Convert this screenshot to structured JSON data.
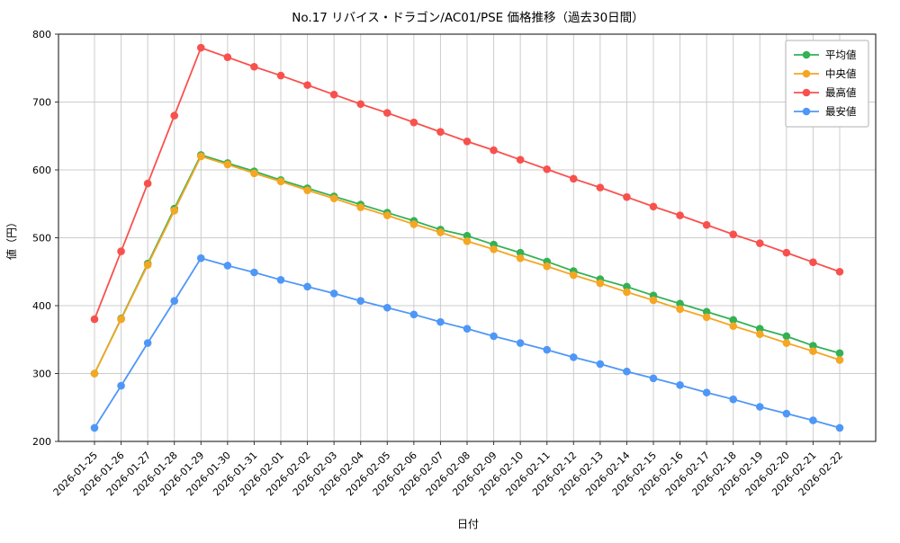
{
  "chart_data": {
    "type": "line",
    "title": "No.17 リバイス・ドラゴン/AC01/PSE 価格推移（過去30日間）",
    "xlabel": "日付",
    "ylabel": "値（円）",
    "ylim": [
      200,
      800
    ],
    "yticks": [
      200,
      300,
      400,
      500,
      600,
      700,
      800
    ],
    "grid": true,
    "legend_position": "upper right",
    "categories": [
      "2026-01-25",
      "2026-01-26",
      "2026-01-27",
      "2026-01-28",
      "2026-01-29",
      "2026-01-30",
      "2026-01-31",
      "2026-02-01",
      "2026-02-02",
      "2026-02-03",
      "2026-02-04",
      "2026-02-05",
      "2026-02-06",
      "2026-02-07",
      "2026-02-08",
      "2026-02-09",
      "2026-02-10",
      "2026-02-11",
      "2026-02-12",
      "2026-02-13",
      "2026-02-14",
      "2026-02-15",
      "2026-02-16",
      "2026-02-17",
      "2026-02-18",
      "2026-02-19",
      "2026-02-20",
      "2026-02-21",
      "2026-02-22"
    ],
    "series": [
      {
        "name": "平均値",
        "key": "average",
        "color": "#33b154",
        "values": [
          300,
          381,
          462,
          543,
          622,
          610,
          598,
          585,
          573,
          561,
          549,
          537,
          525,
          512,
          503,
          490,
          478,
          465,
          451,
          439,
          428,
          415,
          403,
          391,
          379,
          366,
          355,
          341,
          330
        ]
      },
      {
        "name": "中央値",
        "key": "median",
        "color": "#f5a623",
        "values": [
          300,
          380,
          460,
          540,
          620,
          608,
          595,
          583,
          570,
          558,
          545,
          533,
          520,
          508,
          495,
          483,
          470,
          458,
          445,
          433,
          420,
          408,
          395,
          383,
          370,
          358,
          345,
          333,
          320
        ]
      },
      {
        "name": "最高値",
        "key": "max",
        "color": "#f8514d",
        "values": [
          380,
          480,
          580,
          680,
          780,
          766,
          752,
          739,
          725,
          711,
          697,
          684,
          670,
          656,
          642,
          629,
          615,
          601,
          587,
          574,
          560,
          546,
          533,
          519,
          505,
          492,
          478,
          464,
          450
        ]
      },
      {
        "name": "最安値",
        "key": "min",
        "color": "#4f97f7",
        "values": [
          220,
          282,
          345,
          407,
          470,
          459,
          449,
          438,
          428,
          418,
          407,
          397,
          387,
          376,
          366,
          355,
          345,
          335,
          324,
          314,
          303,
          293,
          283,
          272,
          262,
          251,
          241,
          231,
          220
        ]
      }
    ]
  }
}
